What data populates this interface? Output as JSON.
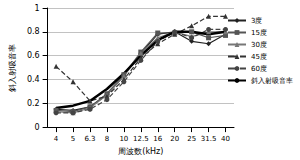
{
  "chart_data": {
    "type": "line",
    "x_label": "周波数(kHz)",
    "y_label": "斜入射吸音率",
    "categories": [
      "4",
      "5",
      "6.3",
      "8",
      "10",
      "12.5",
      "16",
      "20",
      "25",
      "31.5",
      "40"
    ],
    "series": [
      {
        "name": "3度",
        "color": "#222222",
        "marker": "diamond",
        "line_style": "solid",
        "values": [
          0.15,
          0.14,
          0.17,
          0.27,
          0.43,
          0.62,
          0.78,
          0.8,
          0.72,
          0.7,
          0.78
        ]
      },
      {
        "name": "15度",
        "color": "#555555",
        "marker": "square",
        "line_style": "solid",
        "values": [
          0.14,
          0.13,
          0.17,
          0.28,
          0.44,
          0.63,
          0.79,
          0.79,
          0.8,
          0.75,
          0.77
        ]
      },
      {
        "name": "30度",
        "color": "#777777",
        "marker": "triangle",
        "line_style": "solid",
        "values": [
          0.13,
          0.12,
          0.16,
          0.27,
          0.43,
          0.62,
          0.75,
          0.8,
          0.76,
          0.8,
          0.8
        ]
      },
      {
        "name": "45度",
        "color": "#333333",
        "marker": "triangle",
        "line_style": "dashed",
        "values": [
          0.51,
          0.38,
          0.22,
          0.26,
          0.4,
          0.58,
          0.7,
          0.78,
          0.85,
          0.93,
          0.93
        ]
      },
      {
        "name": "60度",
        "color": "#444444",
        "marker": "circle",
        "line_style": "dashed",
        "values": [
          0.12,
          0.12,
          0.15,
          0.23,
          0.38,
          0.56,
          0.72,
          0.8,
          0.75,
          0.82,
          0.82
        ]
      },
      {
        "name": "斜入射吸音率",
        "color": "#000000",
        "marker": "none",
        "line_style": "thick",
        "values": [
          0.16,
          0.18,
          0.22,
          0.32,
          0.45,
          0.6,
          0.73,
          0.8,
          0.8,
          0.78,
          0.8
        ]
      }
    ],
    "ylim": [
      0,
      1
    ],
    "yticks": [
      0,
      0.2,
      0.4,
      0.6,
      0.8,
      1
    ],
    "grid": true,
    "legend": "right"
  }
}
